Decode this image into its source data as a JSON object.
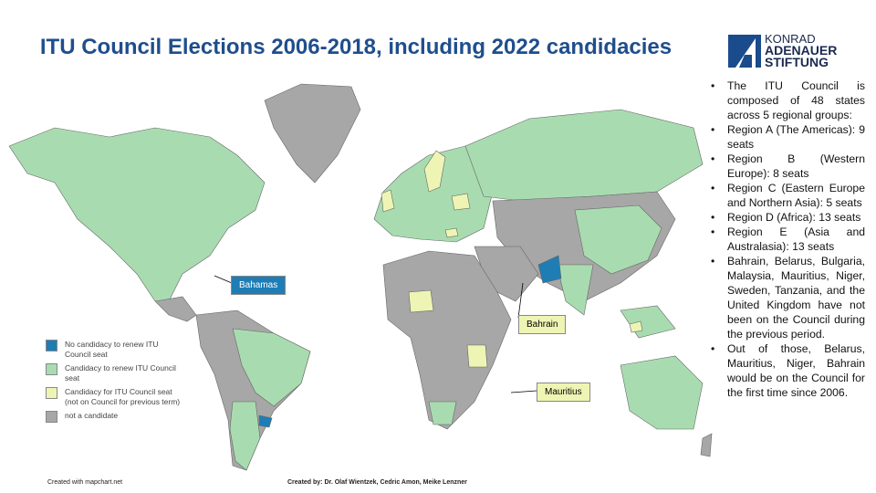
{
  "title": "ITU Council Elections 2006-2018, including 2022 candidacies",
  "logo": {
    "line1": "KONRAD",
    "line2": "ADENAUER",
    "line3": "STIFTUNG"
  },
  "colors": {
    "no_candidacy": "#1f7db6",
    "renew": "#a8dcb0",
    "new_candidacy": "#eef5b4",
    "not_candidate": "#a7a7a7",
    "title": "#1f4e8c"
  },
  "bullets": [
    "The ITU Council is composed of 48 states across 5 regional groups:",
    "Region A (The Americas): 9 seats",
    "Region B (Western Europe): 8 seats",
    "Region C (Eastern Europe and Northern Asia): 5 seats",
    "Region D (Africa): 13 seats",
    "Region E (Asia and Australasia): 13 seats",
    "Bahrain, Belarus, Bulgaria, Malaysia, Mauritius, Niger, Sweden, Tanzania, and the United Kingdom have not been on the Council during the previous period.",
    "Out of those, Belarus, Mauritius, Niger, Bahrain would be on the Council for the first time since 2006."
  ],
  "legend": [
    {
      "label": "No candidacy to renew ITU Council seat",
      "color": "#1f7db6"
    },
    {
      "label": "Candidacy to renew ITU Council seat",
      "color": "#a8dcb0"
    },
    {
      "label": "Candidacy for ITU Council seat (not on Council for previous term)",
      "color": "#eef5b4"
    },
    {
      "label": "not a candidate",
      "color": "#a7a7a7"
    }
  ],
  "callouts": {
    "bahamas": "Bahamas",
    "bahrain": "Bahrain",
    "mauritius": "Mauritius"
  },
  "credits": {
    "mapchart": "Created with mapchart.net",
    "authors": "Created by: Dr. Olaf Wientzek, Cedric Amon, Meike Lenzner"
  }
}
